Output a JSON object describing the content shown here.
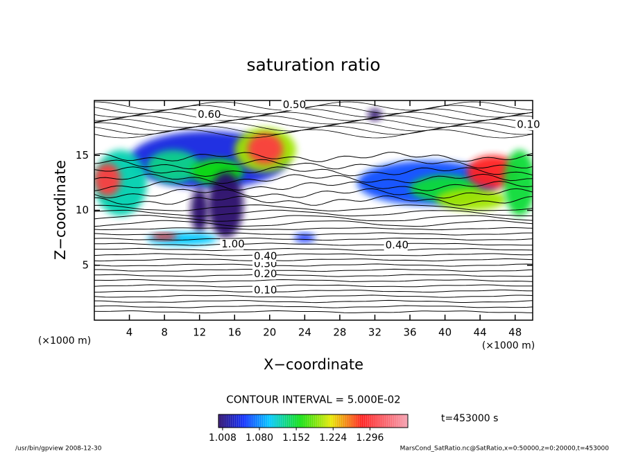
{
  "chart_data": {
    "type": "contour",
    "title": "saturation ratio",
    "xlabel": "X−coordinate",
    "ylabel": "Z−coordinate",
    "xunit": "(×1000 m)",
    "yunit": "(×1000 m)",
    "xlim": [
      0,
      50
    ],
    "ylim": [
      0,
      20
    ],
    "xticks": [
      4,
      8,
      12,
      16,
      20,
      24,
      28,
      32,
      36,
      40,
      44,
      48
    ],
    "yticks": [
      5,
      10,
      15
    ],
    "field": [
      {
        "x": 13,
        "z": 14.6,
        "rx": 9,
        "rz": 2.6,
        "value": 1.04
      },
      {
        "x": 3,
        "z": 12.5,
        "rx": 3,
        "rz": 3,
        "value": 1.12
      },
      {
        "x": 1.5,
        "z": 12.8,
        "rx": 1.5,
        "rz": 1.5,
        "value": 1.3
      },
      {
        "x": 9,
        "z": 14,
        "rx": 3,
        "rz": 1.5,
        "value": 1.13
      },
      {
        "x": 14,
        "z": 13.5,
        "rx": 3,
        "rz": 1.2,
        "value": 1.16
      },
      {
        "x": 19.5,
        "z": 15.5,
        "rx": 3.5,
        "rz": 2,
        "value": 1.2
      },
      {
        "x": 19.5,
        "z": 15.6,
        "rx": 2,
        "rz": 1.4,
        "value": 1.3
      },
      {
        "x": 15,
        "z": 10.5,
        "rx": 2,
        "rz": 3,
        "value": 1.0
      },
      {
        "x": 12,
        "z": 10,
        "rx": 1,
        "rz": 2,
        "value": 1.0
      },
      {
        "x": 10,
        "z": 7.4,
        "rx": 4,
        "rz": 0.6,
        "value": 1.1
      },
      {
        "x": 8,
        "z": 7.6,
        "rx": 1.5,
        "rz": 0.3,
        "value": 1.28
      },
      {
        "x": 38,
        "z": 12.5,
        "rx": 8,
        "rz": 2,
        "value": 1.06
      },
      {
        "x": 40,
        "z": 12,
        "rx": 4,
        "rz": 1.2,
        "value": 1.15
      },
      {
        "x": 43,
        "z": 11,
        "rx": 4,
        "rz": 1,
        "value": 1.2
      },
      {
        "x": 45.5,
        "z": 13.5,
        "rx": 3,
        "rz": 1.5,
        "value": 1.28
      },
      {
        "x": 48.5,
        "z": 12.5,
        "rx": 1.8,
        "rz": 3,
        "value": 1.15
      },
      {
        "x": 32,
        "z": 18.7,
        "rx": 0.8,
        "rz": 0.5,
        "value": 1.0
      },
      {
        "x": 24,
        "z": 7.5,
        "rx": 1.2,
        "rz": 0.4,
        "value": 1.05
      }
    ],
    "annotations": [
      {
        "text": "0.10",
        "x": 18.2,
        "z": 2.7
      },
      {
        "text": "0.20",
        "x": 18.2,
        "z": 4.2
      },
      {
        "text": "0.30",
        "x": 18.2,
        "z": 5.1
      },
      {
        "text": "0.40",
        "x": 18.2,
        "z": 5.8
      },
      {
        "text": "0.50",
        "x": 21.5,
        "z": 19.6
      },
      {
        "text": "0.60",
        "x": 11.8,
        "z": 18.7
      },
      {
        "text": "0.10",
        "x": 48.2,
        "z": 17.8
      },
      {
        "text": "0.40",
        "x": 33.2,
        "z": 6.8
      },
      {
        "text": "1.00",
        "x": 14.5,
        "z": 6.9
      }
    ],
    "colormap": [
      {
        "value": 1.0,
        "color": "#2a0a6a"
      },
      {
        "value": 1.05,
        "color": "#1030ff"
      },
      {
        "value": 1.1,
        "color": "#00c8ff"
      },
      {
        "value": 1.16,
        "color": "#10e010"
      },
      {
        "value": 1.22,
        "color": "#e8e800"
      },
      {
        "value": 1.28,
        "color": "#ff2020"
      },
      {
        "value": 1.37,
        "color": "#f4a0b0"
      }
    ],
    "clim": [
      1.0,
      1.37
    ],
    "cticks": [
      {
        "value": 1.008,
        "label": "1.008"
      },
      {
        "value": 1.08,
        "label": "1.080"
      },
      {
        "value": 1.152,
        "label": "1.152"
      },
      {
        "value": 1.224,
        "label": "1.224"
      },
      {
        "value": 1.296,
        "label": "1.296"
      }
    ],
    "contour_interval": "CONTOUR INTERVAL = 5.000E-02",
    "time_label": "t=453000 s",
    "footer_left": "/usr/bin/gpview   2008-12-30",
    "footer_right": "MarsCond_SatRatio.nc@SatRatio,x=0:50000,z=0:20000,t=453000"
  }
}
